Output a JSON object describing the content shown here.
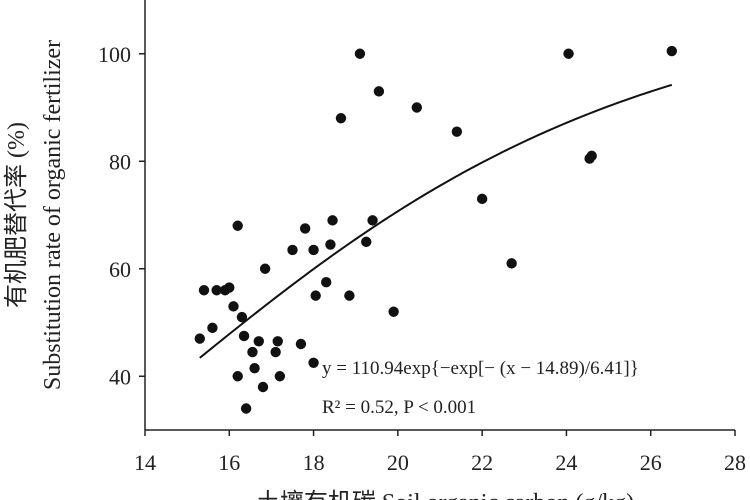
{
  "chart_data": {
    "type": "scatter",
    "ylabel_zh": "有机肥替代率 (%)",
    "ylabel_en": "Substitution rate of organic fertilizer",
    "xlabel": "土壤有机碳 Soil organic carbon (g/kg)",
    "xlim": [
      14,
      28
    ],
    "ylim": [
      30,
      110
    ],
    "xticks": [
      14,
      16,
      18,
      20,
      22,
      24,
      26,
      28
    ],
    "yticks": [
      40,
      60,
      80,
      100
    ],
    "xtick_labels": [
      "14",
      "16",
      "18",
      "20",
      "22",
      "24",
      "26",
      "28"
    ],
    "ytick_labels": [
      "40",
      "60",
      "80",
      "100"
    ],
    "grid": false,
    "series": [
      {
        "kind": "points",
        "points": [
          [
            15.3,
            47
          ],
          [
            15.4,
            56
          ],
          [
            15.6,
            49
          ],
          [
            15.7,
            56
          ],
          [
            15.9,
            56
          ],
          [
            16.0,
            56.5
          ],
          [
            16.1,
            53
          ],
          [
            16.2,
            68
          ],
          [
            16.2,
            40
          ],
          [
            16.3,
            51
          ],
          [
            16.35,
            47.5
          ],
          [
            16.4,
            34
          ],
          [
            16.55,
            44.5
          ],
          [
            16.6,
            41.5
          ],
          [
            16.7,
            46.5
          ],
          [
            16.8,
            38
          ],
          [
            16.85,
            60
          ],
          [
            17.1,
            44.5
          ],
          [
            17.15,
            46.5
          ],
          [
            17.2,
            40
          ],
          [
            17.5,
            63.5
          ],
          [
            17.7,
            46
          ],
          [
            17.8,
            67.5
          ],
          [
            18.0,
            63.5
          ],
          [
            18.05,
            55
          ],
          [
            18.0,
            42.5
          ],
          [
            18.3,
            57.5
          ],
          [
            18.4,
            64.5
          ],
          [
            18.45,
            69
          ],
          [
            18.65,
            88
          ],
          [
            18.85,
            55
          ],
          [
            19.1,
            100
          ],
          [
            19.25,
            65
          ],
          [
            19.4,
            69
          ],
          [
            19.55,
            93
          ],
          [
            19.9,
            52
          ],
          [
            20.45,
            90
          ],
          [
            21.4,
            85.5
          ],
          [
            22.0,
            73
          ],
          [
            22.7,
            61
          ],
          [
            24.05,
            100
          ],
          [
            24.55,
            80.5
          ],
          [
            24.6,
            81
          ],
          [
            26.5,
            100.5
          ]
        ]
      },
      {
        "kind": "fit",
        "equation": "y = 110.94exp{−exp[− (x − 14.89)/6.41]}",
        "params": {
          "a": 110.94,
          "b": 14.89,
          "c": 6.41
        },
        "x_range": [
          15.3,
          26.5
        ]
      }
    ],
    "annotations": {
      "equation": "y = 110.94exp{−exp[− (x − 14.89)/6.41]}",
      "r2": "R² = 0.52, P < 0.001"
    }
  }
}
